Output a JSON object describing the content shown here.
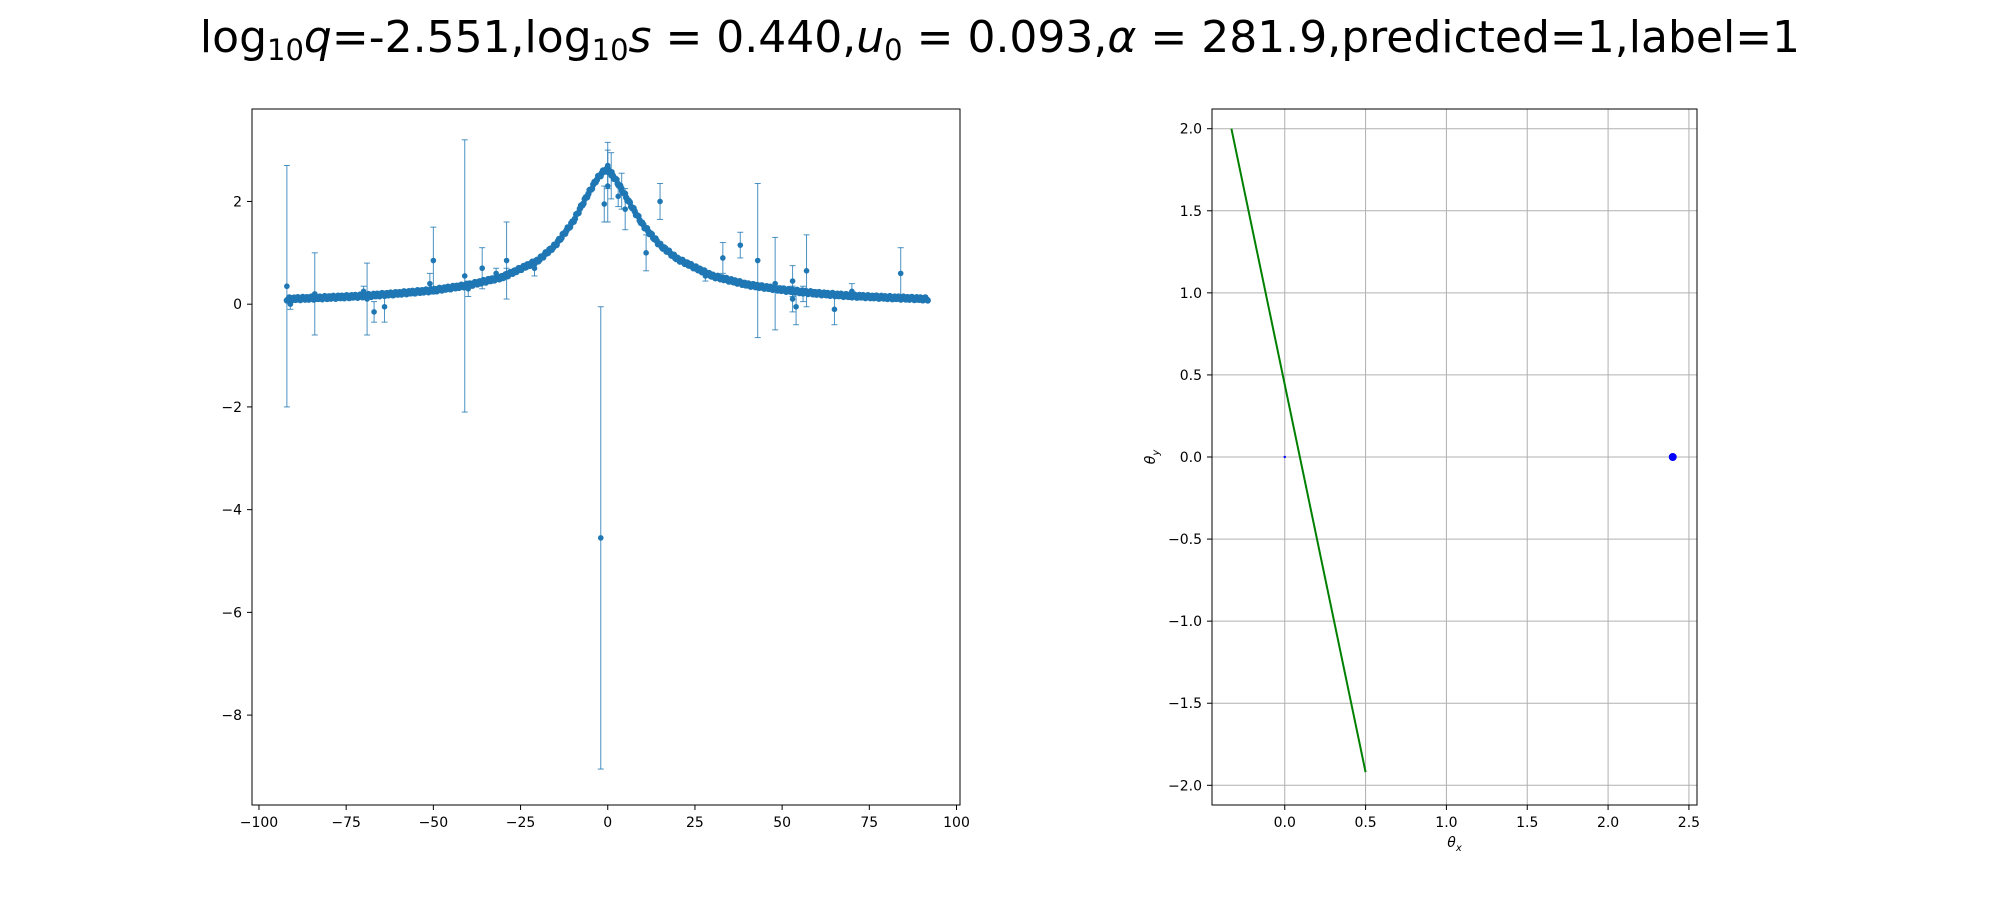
{
  "title": {
    "log10q_label": "log",
    "log10q_sub": "10",
    "log10q_var": "q",
    "log10q_value": "=-2.551,",
    "log10s_label": "log",
    "log10s_sub": "10",
    "log10s_var": "s",
    "log10s_value": " = 0.440,",
    "u0_var": "u",
    "u0_sub": "0",
    "u0_value": " = 0.093,",
    "alpha_var": "α",
    "alpha_value": " = 281.9,predicted=1,label=1"
  },
  "chart_data": [
    {
      "type": "scatter",
      "title": "",
      "xlabel": "",
      "ylabel": "",
      "xlim": [
        -102,
        101
      ],
      "ylim": [
        -9.75,
        3.8
      ],
      "xticks": [
        -100,
        -75,
        -50,
        -25,
        0,
        25,
        50,
        75,
        100
      ],
      "xtick_labels": [
        "−100",
        "−75",
        "−50",
        "−25",
        "0",
        "25",
        "50",
        "75",
        "100"
      ],
      "yticks": [
        -8,
        -6,
        -4,
        -2,
        0,
        2
      ],
      "ytick_labels": [
        "−8",
        "−6",
        "−4",
        "−2",
        "0",
        "2"
      ],
      "grid": false,
      "color": "#1f77b4",
      "model_curve": {
        "description_points_x": [
          -92,
          -80,
          -70,
          -60,
          -50,
          -40,
          -30,
          -20,
          -15,
          -10,
          -6,
          -3,
          -1,
          0,
          1,
          3,
          6,
          10,
          15,
          20,
          30,
          40,
          50,
          60,
          70,
          80,
          92
        ],
        "description_points_y": [
          0.1,
          0.13,
          0.16,
          0.21,
          0.27,
          0.37,
          0.53,
          0.85,
          1.15,
          1.6,
          2.1,
          2.45,
          2.6,
          2.62,
          2.55,
          2.35,
          2.0,
          1.55,
          1.15,
          0.88,
          0.55,
          0.38,
          0.28,
          0.21,
          0.16,
          0.13,
          0.1
        ]
      },
      "points": [
        {
          "x": -92,
          "y": 0.35,
          "err": 2.35
        },
        {
          "x": -91,
          "y": 0.0,
          "err": 0.1
        },
        {
          "x": -84,
          "y": 0.2,
          "err": 0.8
        },
        {
          "x": -70,
          "y": 0.25,
          "err": 0.1
        },
        {
          "x": -69,
          "y": 0.1,
          "err": 0.7
        },
        {
          "x": -67,
          "y": -0.15,
          "err": 0.2
        },
        {
          "x": -64,
          "y": -0.05,
          "err": 0.3
        },
        {
          "x": -50,
          "y": 0.85,
          "err": 0.65
        },
        {
          "x": -51,
          "y": 0.4,
          "err": 0.2
        },
        {
          "x": -41,
          "y": 0.55,
          "err": 2.65
        },
        {
          "x": -40,
          "y": 0.3,
          "err": 0.15
        },
        {
          "x": -36,
          "y": 0.7,
          "err": 0.4
        },
        {
          "x": -32,
          "y": 0.6,
          "err": 0.1
        },
        {
          "x": -29,
          "y": 0.85,
          "err": 0.75
        },
        {
          "x": -29,
          "y": 0.6,
          "err": 0.1
        },
        {
          "x": -21,
          "y": 0.7,
          "err": 0.15
        },
        {
          "x": -2,
          "y": -4.55,
          "err": 4.5
        },
        {
          "x": -1,
          "y": 1.95,
          "err": 0.35
        },
        {
          "x": 0,
          "y": 2.7,
          "err": 0.45
        },
        {
          "x": 0,
          "y": 2.3,
          "err": 0.7
        },
        {
          "x": 1,
          "y": 2.5,
          "err": 0.45
        },
        {
          "x": 3,
          "y": 2.1,
          "err": 0.2
        },
        {
          "x": 4,
          "y": 2.2,
          "err": 0.35
        },
        {
          "x": 5,
          "y": 1.85,
          "err": 0.4
        },
        {
          "x": 11,
          "y": 1.0,
          "err": 0.35
        },
        {
          "x": 15,
          "y": 2.0,
          "err": 0.35
        },
        {
          "x": 28,
          "y": 0.55,
          "err": 0.1
        },
        {
          "x": 33,
          "y": 0.9,
          "err": 0.3
        },
        {
          "x": 38,
          "y": 1.15,
          "err": 0.25
        },
        {
          "x": 43,
          "y": 0.85,
          "err": 1.5
        },
        {
          "x": 48,
          "y": 0.4,
          "err": 0.9
        },
        {
          "x": 53,
          "y": 0.45,
          "err": 0.3
        },
        {
          "x": 53,
          "y": 0.1,
          "err": 0.25
        },
        {
          "x": 54,
          "y": -0.05,
          "err": 0.35
        },
        {
          "x": 56,
          "y": 0.2,
          "err": 0.15
        },
        {
          "x": 57,
          "y": 0.65,
          "err": 0.7
        },
        {
          "x": 65,
          "y": -0.1,
          "err": 0.3
        },
        {
          "x": 70,
          "y": 0.25,
          "err": 0.15
        },
        {
          "x": 84,
          "y": 0.6,
          "err": 0.5
        }
      ]
    },
    {
      "type": "line",
      "title": "",
      "xlabel": "θ_x",
      "ylabel": "θ_y",
      "xlim": [
        -0.45,
        2.55
      ],
      "ylim": [
        -2.12,
        2.12
      ],
      "xticks": [
        0.0,
        0.5,
        1.0,
        1.5,
        2.0,
        2.5
      ],
      "xtick_labels": [
        "0.0",
        "0.5",
        "1.0",
        "1.5",
        "2.0",
        "2.5"
      ],
      "yticks": [
        -2.0,
        -1.5,
        -1.0,
        -0.5,
        0.0,
        0.5,
        1.0,
        1.5,
        2.0
      ],
      "ytick_labels": [
        "−2.0",
        "−1.5",
        "−1.0",
        "−0.5",
        "0.0",
        "0.5",
        "1.0",
        "1.5",
        "2.0"
      ],
      "grid": true,
      "trajectory": {
        "color": "#008000",
        "x": [
          -0.33,
          0.5
        ],
        "y": [
          2.0,
          -1.92
        ]
      },
      "lens_points": [
        {
          "x": 0.0,
          "y": 0.0,
          "color": "#0000ff",
          "size": "small"
        },
        {
          "x": 2.4,
          "y": 0.0,
          "color": "#0000ff",
          "size": "large"
        }
      ]
    }
  ]
}
